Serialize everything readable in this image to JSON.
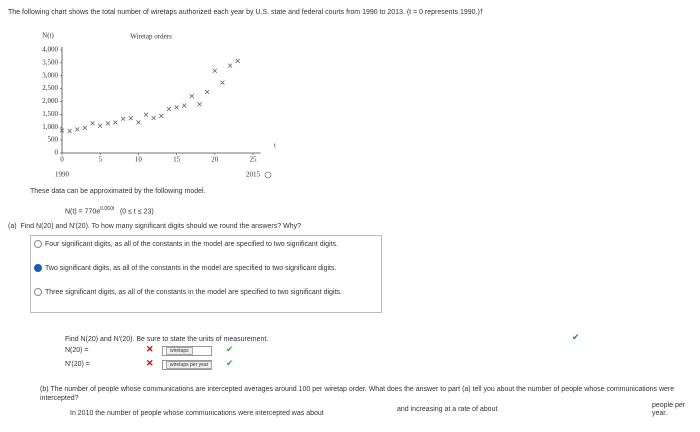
{
  "prompt": "The following chart shows the total number of wiretaps authorized each year by U.S. state and federal courts from 1990 to 2013. (t = 0 represents 1990.)†",
  "chart": {
    "type": "scatter",
    "title": "Wiretap orders",
    "y_label": "N(t)",
    "x_label": "t",
    "start_year": "1990",
    "end_year": "2015",
    "x": [
      0,
      1,
      2,
      3,
      4,
      5,
      6,
      7,
      8,
      9,
      10,
      11,
      12,
      13,
      14,
      15,
      16,
      17,
      18,
      19,
      20,
      21,
      22,
      23
    ],
    "values": [
      872,
      856,
      919,
      976,
      1154,
      1058,
      1149,
      1186,
      1329,
      1350,
      1190,
      1491,
      1358,
      1442,
      1710,
      1773,
      1839,
      2208,
      1891,
      2376,
      3194,
      2732,
      3395,
      3576
    ],
    "color": "#555555",
    "xlim": [
      0,
      26
    ],
    "ylim": [
      0,
      4000
    ],
    "xticks": [
      0,
      5,
      10,
      15,
      20,
      25
    ],
    "yticks": [
      0,
      500,
      {
        "value": 1000,
        "label": "1,000"
      },
      {
        "value": 1500,
        "label": "1,500"
      },
      {
        "value": 2000,
        "label": "2,000"
      },
      {
        "value": 2500,
        "label": "2,500"
      },
      {
        "value": 3000,
        "label": "3,000"
      },
      {
        "value": 3500,
        "label": "3,500"
      },
      {
        "value": 4000,
        "label": "4,000"
      }
    ]
  },
  "model": {
    "intro": "These data can be approximated by the following model.",
    "lhs": "N(t) = 770e",
    "exponent": "0.060t",
    "domain": "(0 ≤ t ≤ 23)"
  },
  "part_a": {
    "label": "(a)",
    "question": "Find N(20) and N′(20). To how many significant digits should we round the answers? Why?",
    "options": [
      "Four significant digits, as all of the constants in the model are specified to two significant digits.",
      "Two significant digits, as all of the constants in the model are specified to two significant digits.",
      "Three significant digits, as all of the constants in the model are specified to two significant digits."
    ],
    "find": "Find N(20) and N′(20). Be sure to state the units of measurement.",
    "n20": "N(20) =",
    "n20_units": "wiretaps",
    "nprime20": "N′(20) =",
    "nprime20_units": "wiretaps per year"
  },
  "part_b": {
    "label": "(b)",
    "question": "The number of people whose communications are intercepted averages around 100 per wiretap order. What does the answer to part (a) tell you about the number of people whose communications were intercepted?",
    "sentence_1": "In 2010 the number of people whose communications were intercepted was about",
    "sentence_2": "and increasing at a rate of about",
    "sentence_3": "people per year."
  }
}
